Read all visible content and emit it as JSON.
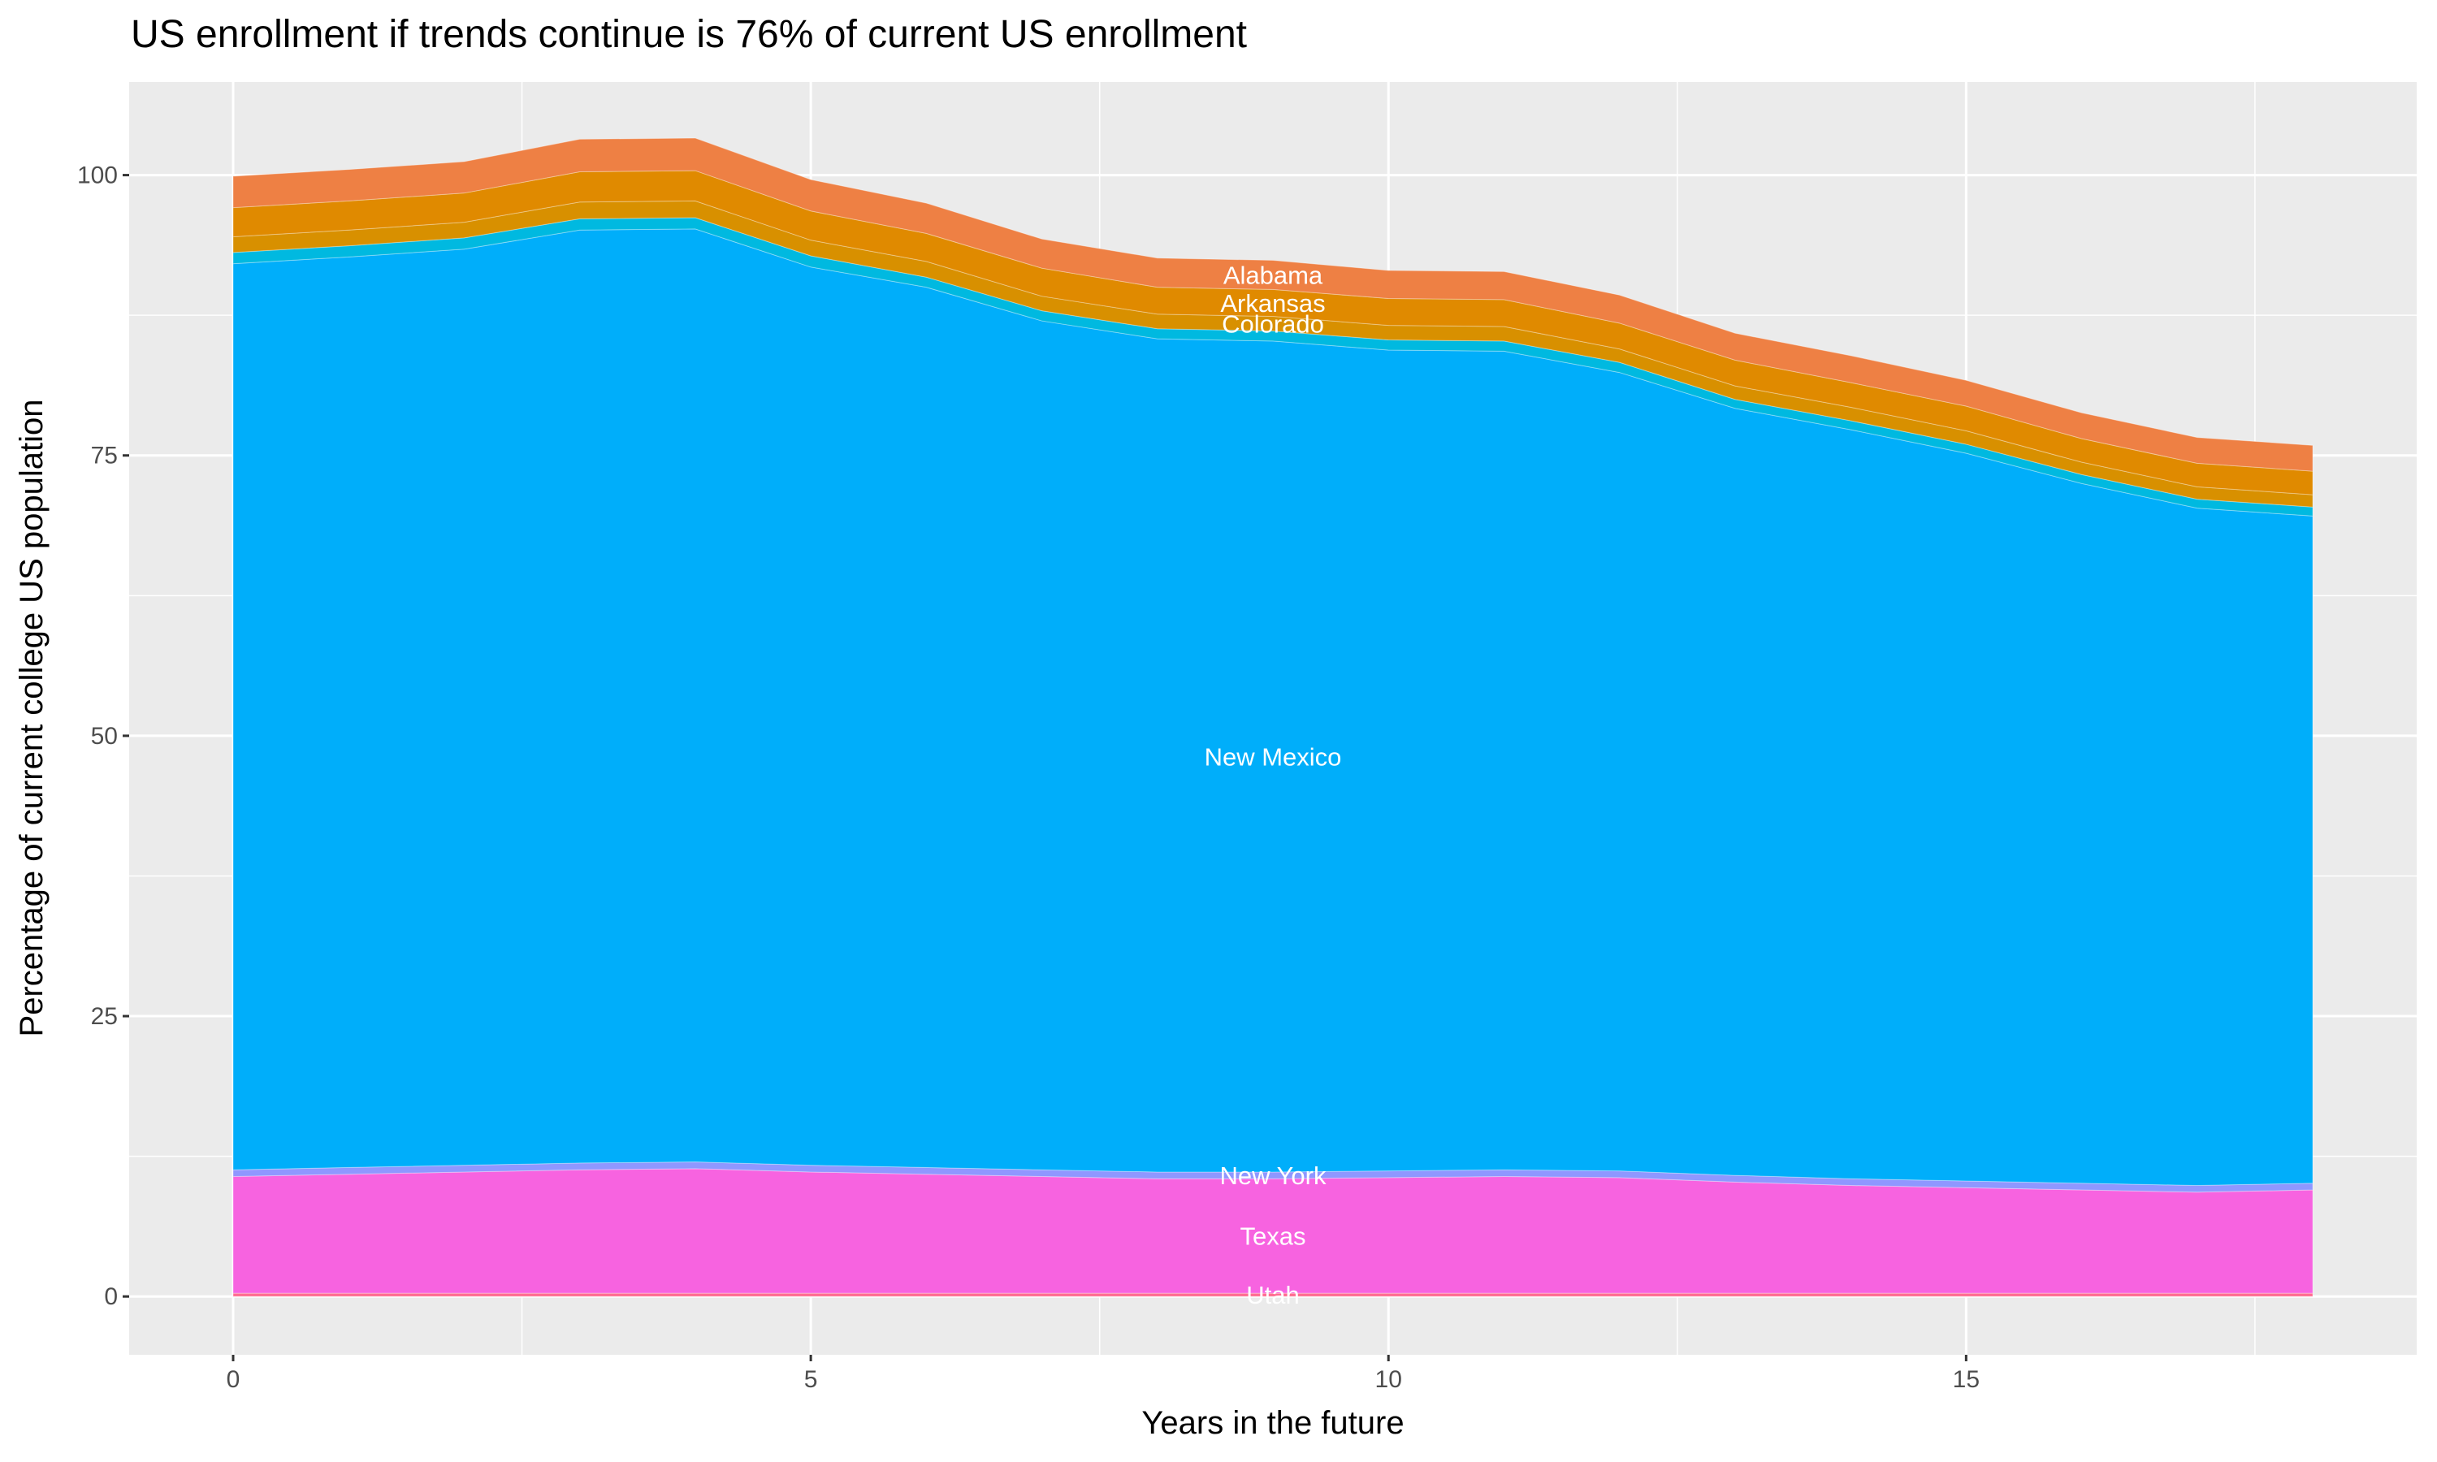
{
  "chart_data": {
    "type": "area",
    "stacked": true,
    "title": "US enrollment if trends continue is 76% of current US enrollment",
    "xlabel": "Years in the future",
    "ylabel": "Percentage of current college US population",
    "xlim": [
      -0.9,
      18.9
    ],
    "ylim": [
      -5.2,
      108.3
    ],
    "x_ticks": [
      0,
      5,
      10,
      15
    ],
    "y_ticks": [
      0,
      25,
      50,
      75,
      100
    ],
    "grid": true,
    "legend": "none",
    "label_x": 9,
    "x": [
      0,
      1,
      2,
      3,
      4,
      5,
      6,
      7,
      8,
      9,
      10,
      11,
      12,
      13,
      14,
      15,
      16,
      17,
      18
    ],
    "series": [
      {
        "name": "Utah",
        "color": "#FF6C91",
        "values": [
          0.3,
          0.3,
          0.3,
          0.3,
          0.3,
          0.3,
          0.3,
          0.3,
          0.3,
          0.3,
          0.3,
          0.3,
          0.3,
          0.3,
          0.3,
          0.3,
          0.3,
          0.3,
          0.3
        ]
      },
      {
        "name": "Texas",
        "color": "#F763E0",
        "values": [
          10.4,
          10.6,
          10.8,
          11.0,
          11.1,
          10.8,
          10.6,
          10.4,
          10.2,
          10.2,
          10.3,
          10.4,
          10.3,
          9.9,
          9.6,
          9.4,
          9.2,
          9.0,
          9.2
        ]
      },
      {
        "name": "New York",
        "color": "#8F97FF",
        "values": [
          0.6,
          0.6,
          0.6,
          0.6,
          0.6,
          0.6,
          0.6,
          0.6,
          0.6,
          0.6,
          0.6,
          0.6,
          0.6,
          0.6,
          0.6,
          0.6,
          0.6,
          0.6,
          0.6
        ]
      },
      {
        "name": "New Mexico",
        "color": "#00AEFA",
        "values": [
          80.8,
          81.2,
          81.7,
          83.2,
          83.2,
          80.1,
          78.5,
          75.7,
          74.3,
          74.1,
          73.2,
          73.0,
          71.2,
          68.4,
          66.8,
          64.9,
          62.4,
          60.4,
          59.5
        ]
      },
      {
        "name": "",
        "color": "#00B9E0",
        "values": [
          1.0,
          1.0,
          1.0,
          1.0,
          1.0,
          1.0,
          0.9,
          0.9,
          0.9,
          0.9,
          0.9,
          0.9,
          0.9,
          0.8,
          0.8,
          0.8,
          0.8,
          0.8,
          0.8
        ]
      },
      {
        "name": "Colorado",
        "color": "#D89000",
        "values": [
          1.4,
          1.4,
          1.4,
          1.5,
          1.5,
          1.4,
          1.4,
          1.3,
          1.3,
          1.3,
          1.3,
          1.3,
          1.2,
          1.2,
          1.2,
          1.2,
          1.1,
          1.1,
          1.1
        ]
      },
      {
        "name": "Arkansas",
        "color": "#E08A00",
        "values": [
          2.6,
          2.6,
          2.6,
          2.7,
          2.7,
          2.6,
          2.5,
          2.5,
          2.4,
          2.4,
          2.4,
          2.4,
          2.3,
          2.3,
          2.2,
          2.2,
          2.1,
          2.1,
          2.1
        ]
      },
      {
        "name": "Alabama",
        "color": "#EE8044",
        "values": [
          2.8,
          2.8,
          2.8,
          2.9,
          2.9,
          2.8,
          2.7,
          2.6,
          2.6,
          2.6,
          2.5,
          2.5,
          2.5,
          2.4,
          2.4,
          2.3,
          2.3,
          2.3,
          2.3
        ]
      }
    ],
    "panel_color": "#EBEBEB"
  }
}
